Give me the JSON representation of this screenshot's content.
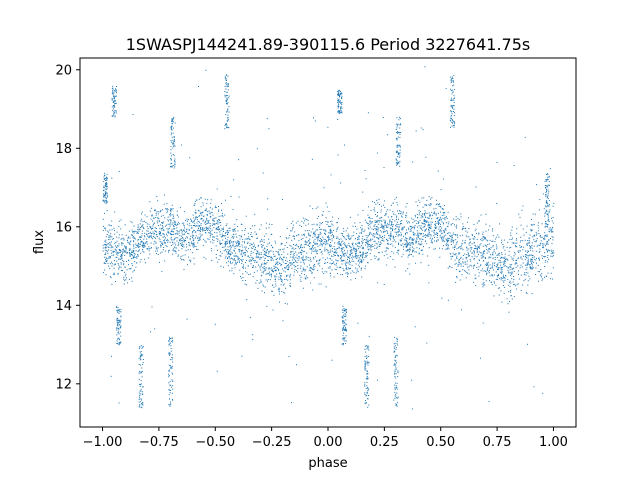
{
  "chart_data": {
    "type": "scatter",
    "title": "1SWASPJ144241.89-390115.6 Period 3227641.75s",
    "xlabel": "phase",
    "ylabel": "flux",
    "xlim": [
      -1.1,
      1.1
    ],
    "ylim": [
      10.9,
      20.3
    ],
    "grid": false,
    "x_ticks": [
      -1.0,
      -0.75,
      -0.5,
      -0.25,
      0.0,
      0.25,
      0.5,
      0.75,
      1.0
    ],
    "x_tick_labels": [
      "−1.00",
      "−0.75",
      "−0.50",
      "−0.25",
      "0.00",
      "0.25",
      "0.50",
      "0.75",
      "1.00"
    ],
    "y_ticks": [
      12,
      14,
      16,
      18,
      20
    ],
    "y_tick_labels": [
      "12",
      "14",
      "16",
      "18",
      "20"
    ],
    "marker_color": "#1f77b4",
    "phase_curve": {
      "phase": [
        0.0,
        0.05,
        0.1,
        0.15,
        0.2,
        0.25,
        0.3,
        0.35,
        0.4,
        0.45,
        0.5,
        0.55,
        0.6,
        0.65,
        0.7,
        0.75,
        0.8,
        0.85,
        0.9,
        0.95,
        1.0
      ],
      "median_flux": [
        15.6,
        15.4,
        15.3,
        15.5,
        15.9,
        15.9,
        16.0,
        15.7,
        15.9,
        16.1,
        16.0,
        15.6,
        15.4,
        15.4,
        15.2,
        15.1,
        14.9,
        15.4,
        15.3,
        15.6,
        15.7
      ],
      "flux_spread": [
        0.7,
        0.6,
        0.6,
        0.6,
        0.6,
        0.6,
        0.6,
        0.6,
        0.6,
        0.6,
        0.6,
        0.6,
        0.7,
        0.7,
        0.7,
        0.7,
        0.7,
        0.8,
        0.8,
        0.8,
        0.8
      ]
    },
    "bright_streaks": [
      {
        "phase": -0.95,
        "flux_range": [
          18.8,
          19.6
        ]
      },
      {
        "phase": 0.05,
        "flux_range": [
          18.9,
          19.5
        ]
      },
      {
        "phase": -0.45,
        "flux_range": [
          18.5,
          19.9
        ]
      },
      {
        "phase": 0.55,
        "flux_range": [
          18.5,
          19.9
        ]
      },
      {
        "phase": -0.69,
        "flux_range": [
          17.5,
          18.8
        ]
      },
      {
        "phase": 0.31,
        "flux_range": [
          17.5,
          18.8
        ]
      },
      {
        "phase": -0.99,
        "flux_range": [
          16.6,
          17.4
        ]
      },
      {
        "phase": 0.97,
        "flux_range": [
          16.0,
          17.4
        ]
      }
    ],
    "faint_streaks": [
      {
        "phase": -0.83,
        "flux_range": [
          11.4,
          13.0
        ]
      },
      {
        "phase": 0.17,
        "flux_range": [
          11.4,
          13.0
        ]
      },
      {
        "phase": -0.7,
        "flux_range": [
          11.4,
          13.2
        ]
      },
      {
        "phase": 0.3,
        "flux_range": [
          11.4,
          13.2
        ]
      },
      {
        "phase": -0.93,
        "flux_range": [
          13.0,
          14.0
        ]
      },
      {
        "phase": 0.07,
        "flux_range": [
          13.0,
          14.0
        ]
      }
    ]
  }
}
